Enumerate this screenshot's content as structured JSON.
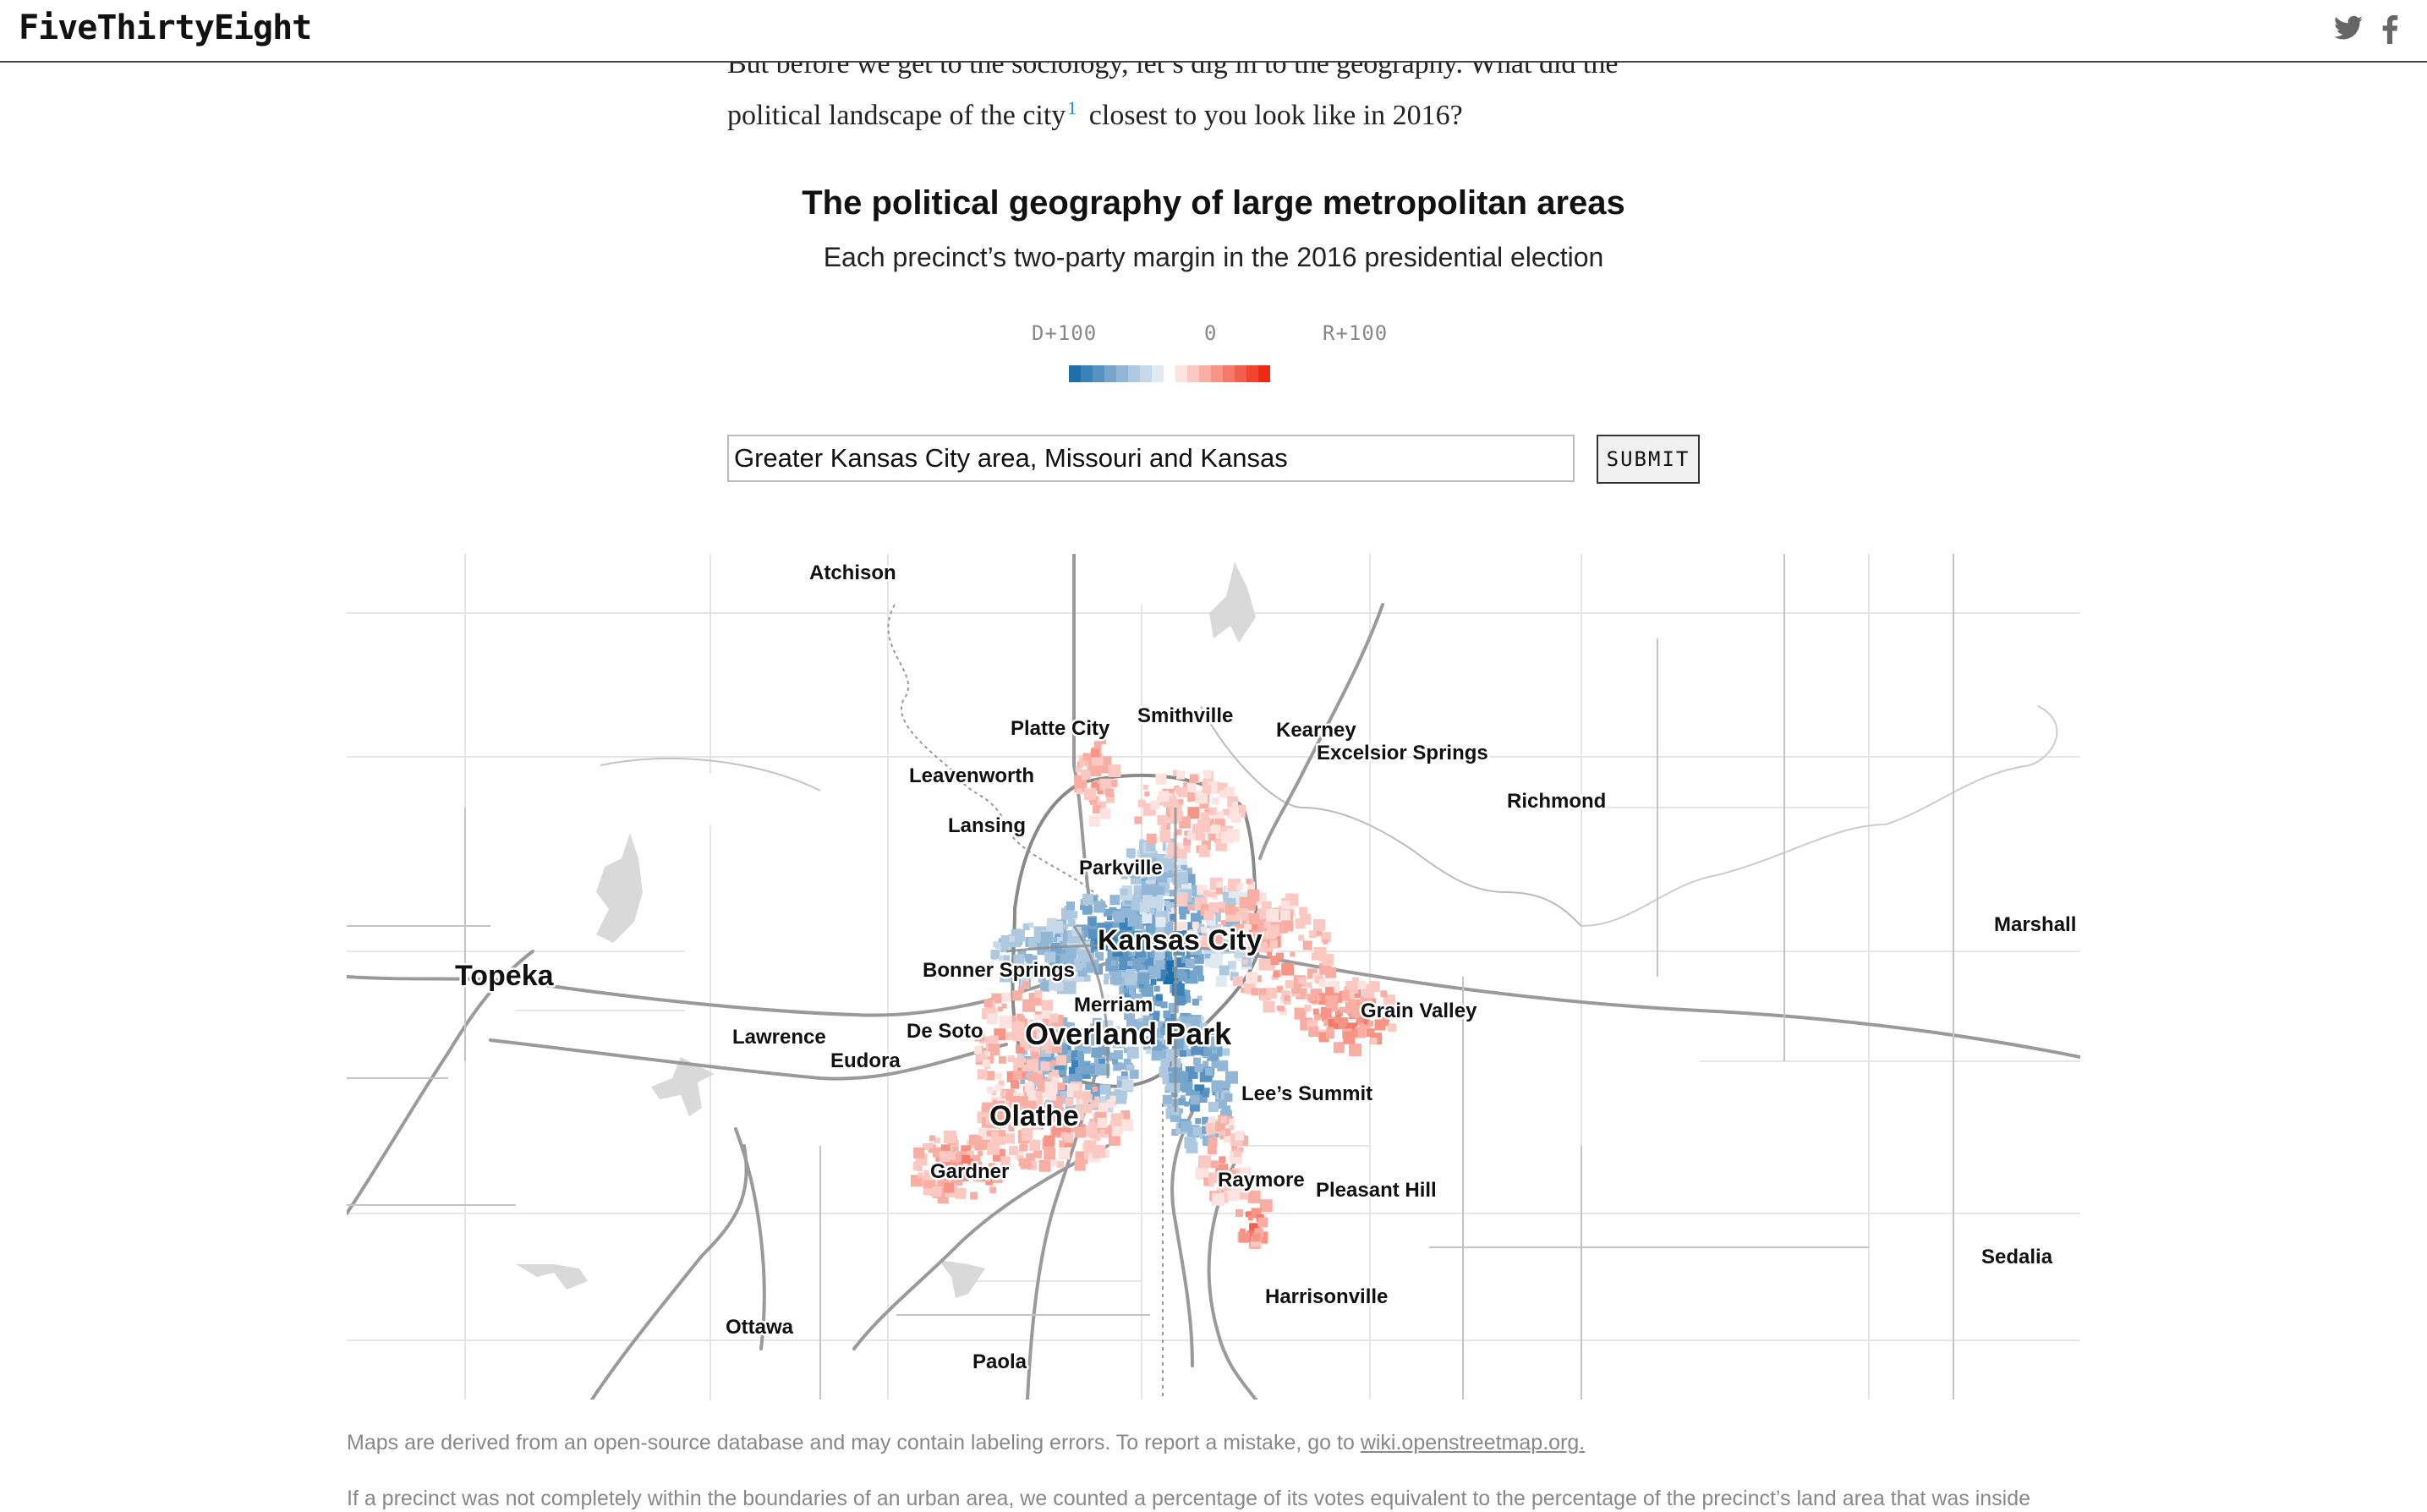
{
  "header": {
    "logo": "FiveThirtyEight",
    "icons": [
      "twitter-icon",
      "facebook-icon"
    ]
  },
  "article": {
    "line1": "But before we get to the sociology, let’s dig in to the geography. What did the",
    "line2_before": "political landscape of the city",
    "footnote": "1",
    "line2_after": "closest to you look like in 2016?"
  },
  "chart": {
    "title": "The political geography of large metropolitan areas",
    "subtitle": "Each precinct’s two-party margin in the 2016 presidential election"
  },
  "legend": {
    "left": "D+100",
    "center": "0",
    "right": "R+100",
    "colors": {
      "dem": [
        "#1f6fab",
        "#3b82b8",
        "#5892c2",
        "#76a5cc",
        "#92b7d6",
        "#adc8df",
        "#c7d9e8",
        "#e0eaf3"
      ],
      "rep": [
        "#fde3e0",
        "#fbc9c2",
        "#f9aea4",
        "#f79486",
        "#f57969",
        "#f35f4c",
        "#f1442e",
        "#ef2a12"
      ]
    }
  },
  "search": {
    "value": "Greater Kansas City area, Missouri and Kansas",
    "submit_label": "SUBMIT"
  },
  "map": {
    "labels": {
      "atchison": "Atchison",
      "platte_city": "Platte City",
      "smithville": "Smithville",
      "kearney": "Kearney",
      "excelsior_springs": "Excelsior Springs",
      "leavenworth": "Leavenworth",
      "richmond": "Richmond",
      "lansing": "Lansing",
      "parkville": "Parkville",
      "marshall": "Marshall",
      "kansas_city": "Kansas City",
      "topeka": "Topeka",
      "bonner_springs": "Bonner Springs",
      "grain_valley": "Grain Valley",
      "merriam": "Merriam",
      "lawrence": "Lawrence",
      "de_soto": "De Soto",
      "overland_park": "Overland Park",
      "eudora": "Eudora",
      "lees_summit": "Lee’s Summit",
      "olathe": "Olathe",
      "gardner": "Gardner",
      "raymore": "Raymore",
      "pleasant_hill": "Pleasant Hill",
      "sedalia": "Sedalia",
      "harrisonville": "Harrisonville",
      "ottawa": "Ottawa",
      "paola": "Paola"
    }
  },
  "notes": {
    "note1_text": "Maps are derived from an open-source database and may contain labeling errors. To report a mistake, go to ",
    "note1_link": "wiki.openstreetmap.org.",
    "note2_text": "If a precinct was not completely within the boundaries of an urban area, we counted a percentage of its votes equivalent to the percentage of the precinct’s land area that was inside"
  }
}
